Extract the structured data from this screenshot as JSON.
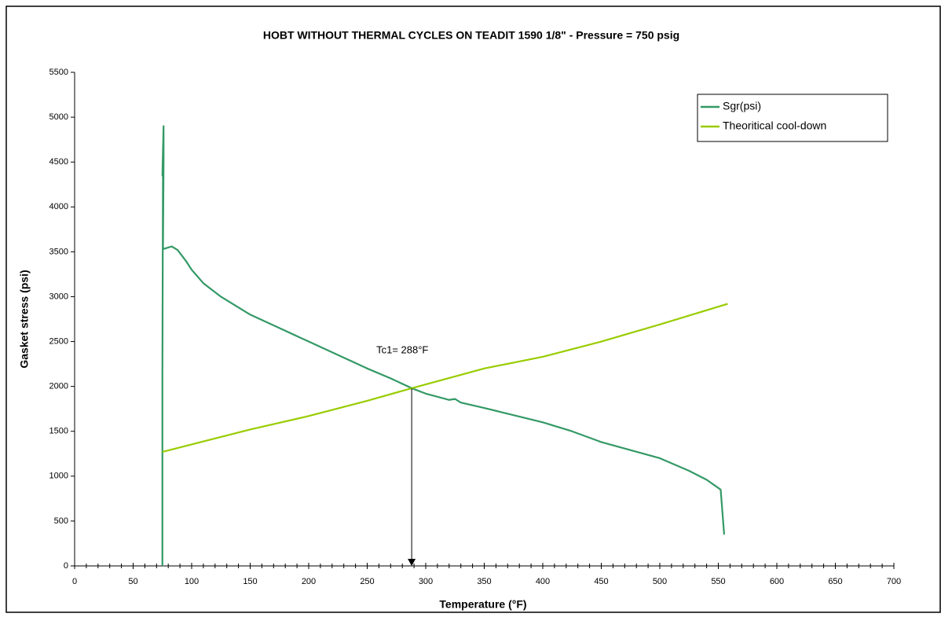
{
  "chart_data": {
    "type": "line",
    "title": "HOBT WITHOUT THERMAL CYCLES ON TEADIT 1590 1/8\"  - Pressure = 750 psig",
    "x_label": "Temperature (°F)",
    "y_label": "Gasket stress (psi)",
    "xlim": [
      0,
      700
    ],
    "ylim": [
      0,
      5500
    ],
    "xticks": [
      0,
      50,
      100,
      150,
      200,
      250,
      300,
      350,
      400,
      450,
      500,
      550,
      600,
      650,
      700
    ],
    "yticks": [
      0,
      500,
      1000,
      1500,
      2000,
      2500,
      3000,
      3500,
      4000,
      4500,
      5000,
      5500
    ],
    "grid": false,
    "legend": "upper right",
    "series": [
      {
        "name": "Sgr(psi)",
        "color": "#339966",
        "x": [
          75,
          75,
          75.5,
          75,
          76,
          76,
          75.5,
          78,
          83,
          88,
          95,
          100,
          110,
          125,
          150,
          175,
          200,
          225,
          250,
          270,
          288,
          300,
          320,
          325,
          330,
          350,
          375,
          400,
          425,
          450,
          475,
          500,
          525,
          540,
          552,
          555
        ],
        "values": [
          0,
          2100,
          4400,
          4350,
          4900,
          4500,
          3530,
          3540,
          3560,
          3520,
          3400,
          3300,
          3150,
          3000,
          2800,
          2650,
          2500,
          2350,
          2200,
          2090,
          1980,
          1920,
          1850,
          1860,
          1820,
          1760,
          1680,
          1600,
          1500,
          1380,
          1290,
          1200,
          1060,
          960,
          850,
          350
        ]
      },
      {
        "name": "Theoritical cool-down",
        "color": "#99cc00",
        "x": [
          75,
          150,
          200,
          250,
          288,
          350,
          400,
          450,
          500,
          558
        ],
        "values": [
          1270,
          1520,
          1670,
          1840,
          1980,
          2200,
          2330,
          2500,
          2690,
          2920
        ]
      }
    ],
    "annotations": [
      {
        "text": "Tc1= 288°F",
        "x": 288,
        "y": 1980
      }
    ]
  }
}
